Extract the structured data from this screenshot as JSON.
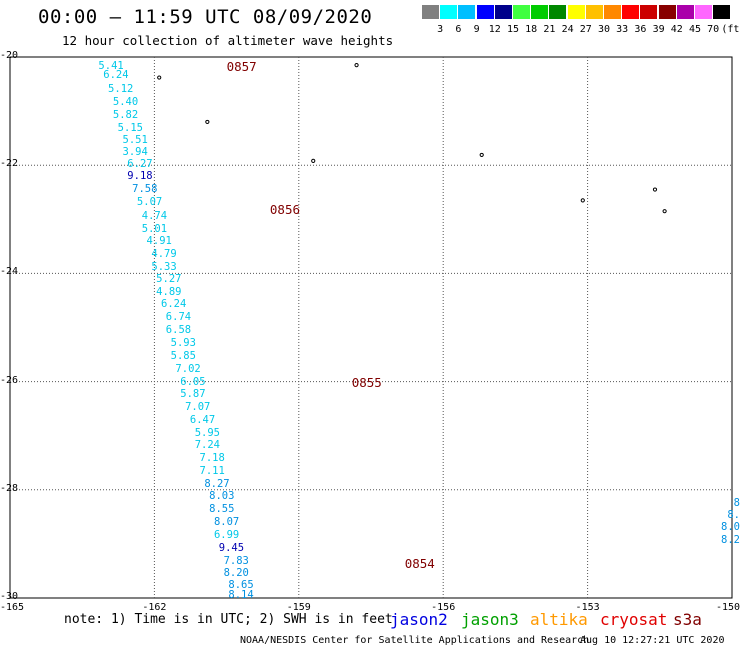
{
  "title": "00:00 – 11:59 UTC 08/09/2020",
  "subtitle": "12 hour collection of altimeter wave heights",
  "legend": {
    "unit": "(ft)",
    "items": [
      {
        "label": "",
        "color": "#808080"
      },
      {
        "label": "3",
        "color": "#00ffff"
      },
      {
        "label": "6",
        "color": "#00bfff"
      },
      {
        "label": "9",
        "color": "#0000ff"
      },
      {
        "label": "12",
        "color": "#00008b"
      },
      {
        "label": "15",
        "color": "#40ff40"
      },
      {
        "label": "18",
        "color": "#00cc00"
      },
      {
        "label": "21",
        "color": "#008800"
      },
      {
        "label": "24",
        "color": "#ffff00"
      },
      {
        "label": "27",
        "color": "#ffc000"
      },
      {
        "label": "30",
        "color": "#ff8800"
      },
      {
        "label": "33",
        "color": "#ff0000"
      },
      {
        "label": "36",
        "color": "#cc0000"
      },
      {
        "label": "39",
        "color": "#880000"
      },
      {
        "label": "42",
        "color": "#aa00aa"
      },
      {
        "label": "45",
        "color": "#ff66ff"
      },
      {
        "label": "70",
        "color": "#000000"
      }
    ]
  },
  "axes": {
    "lon_min": -165,
    "lon_max": -150,
    "lat_min": -30,
    "lat_max": -20,
    "lat_labels": [
      "-20",
      "-22",
      "-24",
      "-26",
      "-28",
      "-30"
    ],
    "lat_values": [
      -20,
      -22,
      -24,
      -26,
      -28,
      -30
    ],
    "lon_labels": [
      "-165",
      "-162",
      "-159",
      "-156",
      "-153",
      "-150"
    ],
    "lon_values": [
      -165,
      -162,
      -159,
      -156,
      -153,
      -150
    ]
  },
  "colors": {
    "cyan": "#00c8e8",
    "blue": "#0090e0",
    "navy": "#0000b0",
    "pass": "#800000"
  },
  "measurements": [
    {
      "v": "5.41",
      "lon": -162.9,
      "lat": -20.17,
      "c": "cyan"
    },
    {
      "v": "6.24",
      "lon": -162.8,
      "lat": -20.37,
      "c": "cyan"
    },
    {
      "v": "5.12",
      "lon": -162.7,
      "lat": -20.66,
      "c": "cyan"
    },
    {
      "v": "5.40",
      "lon": -162.6,
      "lat": -20.95,
      "c": "cyan"
    },
    {
      "v": "5.82",
      "lon": -162.6,
      "lat": -21.24,
      "c": "cyan"
    },
    {
      "v": "5.15",
      "lon": -162.5,
      "lat": -21.51,
      "c": "cyan"
    },
    {
      "v": "5.51",
      "lon": -162.4,
      "lat": -21.77,
      "c": "cyan"
    },
    {
      "v": "3.94",
      "lon": -162.4,
      "lat": -22.03,
      "c": "cyan"
    },
    {
      "v": "6.27",
      "lon": -162.3,
      "lat": -22.3,
      "c": "cyan"
    },
    {
      "v": "9.18",
      "lon": -162.3,
      "lat": -22.56,
      "c": "navy"
    },
    {
      "v": "7.58",
      "lon": -162.2,
      "lat": -22.83,
      "c": "blue"
    },
    {
      "v": "5.07",
      "lon": -162.1,
      "lat": -23.12,
      "c": "cyan"
    },
    {
      "v": "4.74",
      "lon": -162.0,
      "lat": -23.41,
      "c": "cyan"
    },
    {
      "v": "5.01",
      "lon": -162.0,
      "lat": -23.69,
      "c": "cyan"
    },
    {
      "v": "4.91",
      "lon": -161.9,
      "lat": -23.96,
      "c": "cyan"
    },
    {
      "v": "4.79",
      "lon": -161.8,
      "lat": -24.23,
      "c": "cyan"
    },
    {
      "v": "5.33",
      "lon": -161.8,
      "lat": -24.51,
      "c": "cyan"
    },
    {
      "v": "5.27",
      "lon": -161.7,
      "lat": -24.79,
      "c": "cyan"
    },
    {
      "v": "4.89",
      "lon": -161.7,
      "lat": -25.06,
      "c": "cyan"
    },
    {
      "v": "6.24",
      "lon": -161.6,
      "lat": -25.33,
      "c": "cyan"
    },
    {
      "v": "6.74",
      "lon": -161.5,
      "lat": -25.61,
      "c": "cyan"
    },
    {
      "v": "6.58",
      "lon": -161.5,
      "lat": -25.89,
      "c": "cyan"
    },
    {
      "v": "5.93",
      "lon": -161.4,
      "lat": -26.17,
      "c": "cyan"
    },
    {
      "v": "5.85",
      "lon": -161.4,
      "lat": -26.44,
      "c": "cyan"
    },
    {
      "v": "7.02",
      "lon": -161.3,
      "lat": -26.73,
      "c": "cyan"
    },
    {
      "v": "6.05",
      "lon": -161.2,
      "lat": -27.0,
      "c": "cyan"
    },
    {
      "v": "5.87",
      "lon": -161.2,
      "lat": -27.27,
      "c": "cyan"
    },
    {
      "v": "7.07",
      "lon": -161.1,
      "lat": -27.55,
      "c": "cyan"
    },
    {
      "v": "6.47",
      "lon": -161.0,
      "lat": -27.83,
      "c": "cyan"
    },
    {
      "v": "5.95",
      "lon": -160.9,
      "lat": -28.11,
      "c": "cyan"
    },
    {
      "v": "7.24",
      "lon": -160.9,
      "lat": -28.38,
      "c": "cyan"
    },
    {
      "v": "7.18",
      "lon": -160.8,
      "lat": -28.66,
      "c": "cyan"
    },
    {
      "v": "7.11",
      "lon": -160.8,
      "lat": -28.93,
      "c": "cyan"
    },
    {
      "v": "8.27",
      "lon": -160.7,
      "lat": -29.21,
      "c": "blue"
    },
    {
      "v": "8.03",
      "lon": -160.6,
      "lat": -29.48,
      "c": "blue"
    },
    {
      "v": "8.55",
      "lon": -160.6,
      "lat": -29.76,
      "c": "blue"
    },
    {
      "v": "8.07",
      "lon": -160.5,
      "lat": -30.04,
      "c": "blue"
    },
    {
      "v": "6.99",
      "lon": -160.5,
      "lat": -30.32,
      "c": "cyan"
    },
    {
      "v": "9.45",
      "lon": -160.4,
      "lat": -30.6,
      "c": "navy"
    },
    {
      "v": "7.83",
      "lon": -160.3,
      "lat": -30.88,
      "c": "blue"
    },
    {
      "v": "8.20",
      "lon": -160.3,
      "lat": -31.15,
      "c": "blue"
    },
    {
      "v": "8.65",
      "lon": -160.2,
      "lat": -31.4,
      "c": "blue"
    },
    {
      "v": "8.14",
      "lon": -160.2,
      "lat": -31.62,
      "c": "blue"
    }
  ],
  "passes": [
    {
      "label": "0857",
      "lon": -160.5,
      "lat": -20.22
    },
    {
      "label": "0856",
      "lon": -159.6,
      "lat": -23.3
    },
    {
      "label": "0855",
      "lon": -157.9,
      "lat": -27.05
    },
    {
      "label": "0854",
      "lon": -156.8,
      "lat": -30.98
    }
  ],
  "edge_values": [
    {
      "v": "8",
      "lon": -150.1,
      "lat": -29.62,
      "c": "blue"
    },
    {
      "v": "8.",
      "lon": -150.1,
      "lat": -29.88,
      "c": "blue"
    },
    {
      "v": "8.0",
      "lon": -150.1,
      "lat": -30.15,
      "c": "blue"
    },
    {
      "v": "8.2",
      "lon": -150.1,
      "lat": -30.42,
      "c": "blue"
    }
  ],
  "islands": [
    {
      "lon": -161.9,
      "lat": -20.38
    },
    {
      "lon": -160.9,
      "lat": -21.2
    },
    {
      "lon": -158.7,
      "lat": -21.92
    },
    {
      "lon": -157.8,
      "lat": -20.15
    },
    {
      "lon": -155.2,
      "lat": -21.81
    },
    {
      "lon": -153.1,
      "lat": -22.65
    },
    {
      "lon": -151.6,
      "lat": -22.45
    },
    {
      "lon": -151.4,
      "lat": -22.85
    }
  ],
  "note": "note: 1) Time is in UTC; 2) SWH is in feet",
  "satellites": [
    {
      "name": "jason2",
      "color": "#0000e0"
    },
    {
      "name": "jason3",
      "color": "#00a000"
    },
    {
      "name": "altika",
      "color": "#ff9900"
    },
    {
      "name": "cryosat",
      "color": "#e00000"
    },
    {
      "name": "s3a",
      "color": "#800000"
    }
  ],
  "credit": "NOAA/NESDIS Center for Satellite Applications and Research",
  "timestamp": "Aug 10 12:27:21 UTC 2020"
}
